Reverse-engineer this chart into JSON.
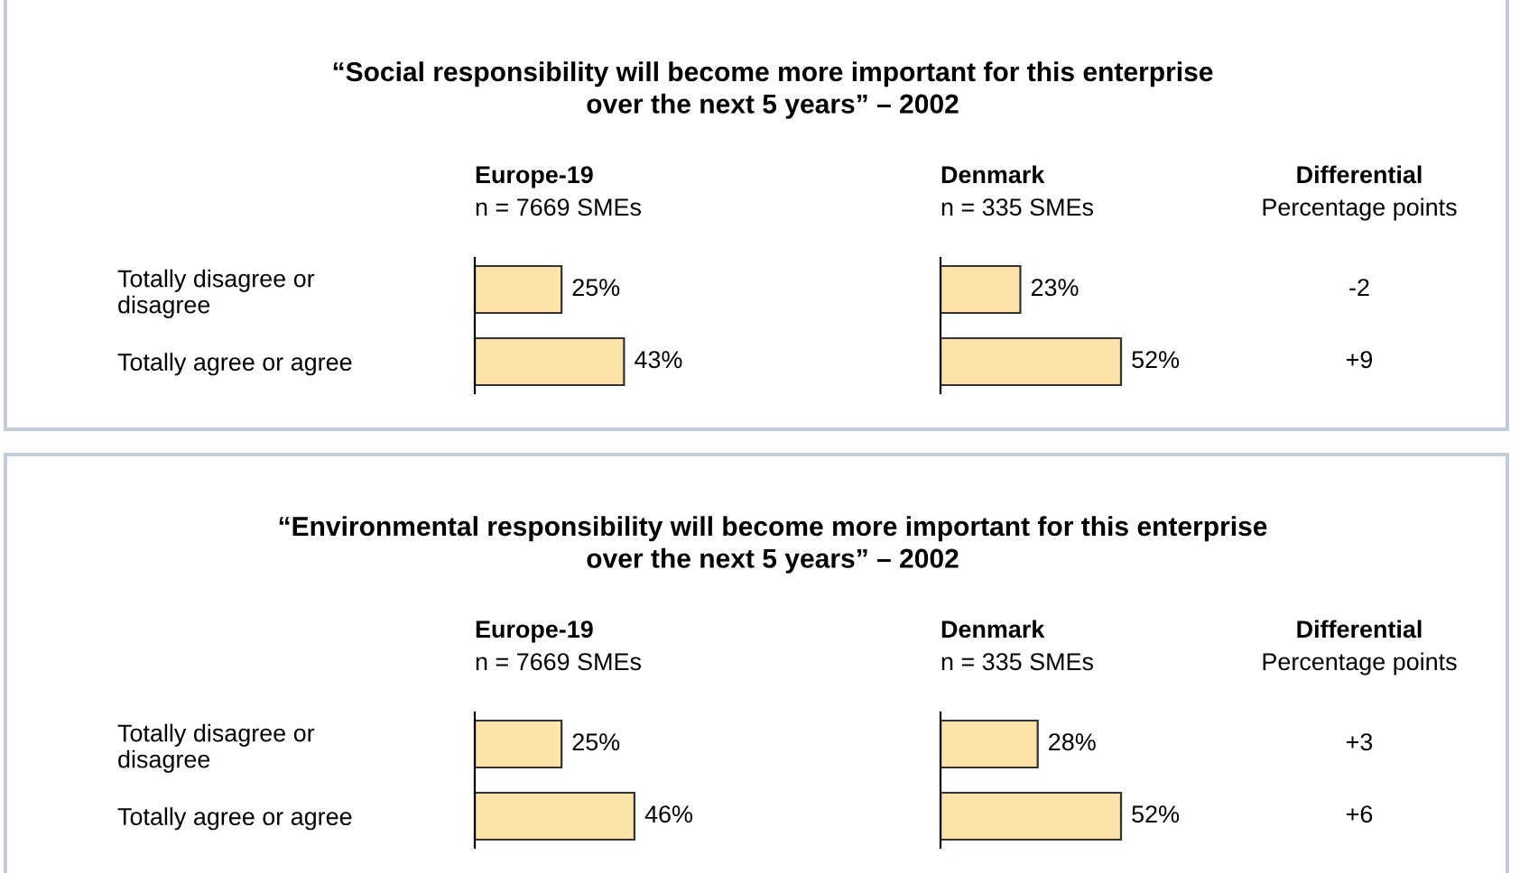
{
  "chart_data": [
    {
      "type": "bar",
      "orientation": "horizontal",
      "title": "“Social responsibility will become more important for this enterprise\nover the next 5 years” – 2002",
      "subtitle": "Europe-19",
      "annotations": [
        "n = 7669 SMEs"
      ],
      "categories": [
        "Totally disagree or\ndisagree",
        "Totally agree or agree"
      ],
      "values": [
        25,
        43
      ],
      "value_labels": [
        "25%",
        "43%"
      ],
      "color": "#fde3a7"
    },
    {
      "type": "bar",
      "orientation": "horizontal",
      "subtitle": "Denmark",
      "annotations": [
        "n = 335 SMEs"
      ],
      "categories": [
        null,
        null
      ],
      "values": [
        23,
        52
      ],
      "value_labels": [
        "23%",
        "52%"
      ],
      "color": "#fde3a7"
    },
    {
      "type": "other",
      "subtitle": "Differential",
      "annotations": [
        "Percentage points"
      ],
      "values": [
        -2,
        9
      ],
      "value_labels": [
        "-2",
        "+9"
      ]
    },
    {
      "type": "bar",
      "orientation": "horizontal",
      "title": "“Environmental responsibility will become more important for this enterprise\nover the next 5 years” – 2002",
      "subtitle": "Europe-19",
      "annotations": [
        "n = 7669 SMEs"
      ],
      "categories": [
        "Totally disagree or\ndisagree",
        "Totally agree or agree"
      ],
      "values": [
        25,
        46
      ],
      "value_labels": [
        "25%",
        "46%"
      ],
      "color": "#fde3a7"
    },
    {
      "type": "bar",
      "orientation": "horizontal",
      "subtitle": "Denmark",
      "annotations": [
        "n = 335 SMEs"
      ],
      "categories": [
        null,
        null
      ],
      "values": [
        28,
        52
      ],
      "value_labels": [
        "28%",
        "52%"
      ],
      "color": "#fde3a7"
    },
    {
      "type": "other",
      "subtitle": "Differential",
      "annotations": [
        "Percentage points"
      ],
      "values": [
        3,
        6
      ],
      "value_labels": [
        "+3",
        "+6"
      ]
    }
  ]
}
